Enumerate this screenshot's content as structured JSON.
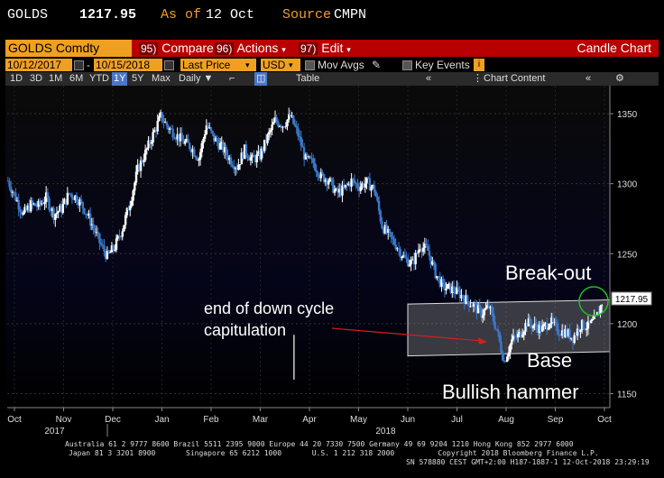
{
  "header": {
    "ticker": "GOLDS",
    "price": "1217.95",
    "asof_label": "As of",
    "asof_date": "12 Oct",
    "source_label": "Source",
    "source_value": "CMPN"
  },
  "command_bar": {
    "security": "GOLDS Comdty",
    "compare_num": "95)",
    "compare_label": "Compare",
    "actions_num": "96)",
    "actions_label": "Actions",
    "edit_num": "97)",
    "edit_label": "Edit",
    "chart_type": "Candle Chart"
  },
  "params": {
    "start_date": "10/12/2017",
    "end_date": "10/15/2018",
    "field": "Last Price",
    "currency": "USD",
    "mov_avgs": "Mov Avgs",
    "key_events": "Key Events"
  },
  "toolbar": {
    "ranges": [
      "1D",
      "3D",
      "1M",
      "6M",
      "YTD",
      "1Y",
      "5Y",
      "Max"
    ],
    "selected_range": "1Y",
    "period": "Daily",
    "table": "Table",
    "chart_content": "Chart Content"
  },
  "chart_data": {
    "type": "candlestick",
    "ylim": [
      1140,
      1370
    ],
    "y_ticks": [
      1150,
      1200,
      1250,
      1300,
      1350
    ],
    "last_price_label": "1217.95",
    "x_months": [
      "Oct",
      "Nov",
      "Dec",
      "Jan",
      "Feb",
      "Mar",
      "Apr",
      "May",
      "Jun",
      "Jul",
      "Aug",
      "Sep",
      "Oct"
    ],
    "x_years": [
      "2017",
      "2018"
    ],
    "weekly_closes": [
      1302,
      1290,
      1278,
      1285,
      1284,
      1290,
      1278,
      1282,
      1293,
      1290,
      1282,
      1271,
      1258,
      1248,
      1255,
      1268,
      1287,
      1310,
      1322,
      1335,
      1348,
      1340,
      1335,
      1330,
      1326,
      1318,
      1342,
      1332,
      1326,
      1318,
      1312,
      1324,
      1317,
      1320,
      1333,
      1345,
      1342,
      1348,
      1335,
      1317,
      1315,
      1305,
      1303,
      1293,
      1296,
      1302,
      1298,
      1301,
      1296,
      1270,
      1262,
      1255,
      1246,
      1243,
      1256,
      1252,
      1236,
      1226,
      1225,
      1222,
      1217,
      1213,
      1207,
      1212,
      1196,
      1173,
      1188,
      1192,
      1201,
      1198,
      1196,
      1202,
      1195,
      1194,
      1190,
      1199,
      1198,
      1203,
      1218
    ],
    "annotations": {
      "text1": "end of down cycle",
      "text2": "capitulation",
      "breakout": "Break-out",
      "base": "Base",
      "hammer": "Bullish hammer"
    },
    "channel": {
      "upper": 1214,
      "lower": 1181,
      "x_start": "2018-06",
      "x_end": "2018-10"
    },
    "colors": {
      "up": "#ffffff",
      "down": "#3a78c8",
      "arrow": "#d02020",
      "circle": "#20c020"
    }
  },
  "footer": {
    "line1": "Australia 61 2 9777 8600 Brazil 5511 2395 9000 Europe 44 20 7330 7500 Germany 49 69 9204 1210 Hong Kong 852 2977 6000",
    "line2": "Japan 81 3 3201 8900       Singapore 65 6212 1000       U.S. 1 212 318 2000          Copyright 2018 Bloomberg Finance L.P.",
    "line3": "SN 578880 CEST GMT+2:00 H187-1887-1 12-Oct-2018 23:29:19"
  }
}
